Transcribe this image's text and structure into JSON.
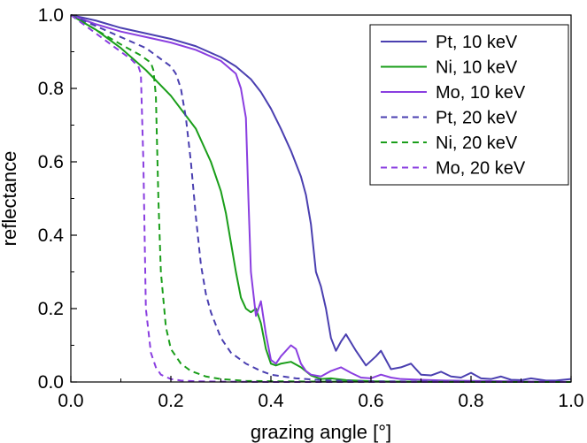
{
  "chart_data": {
    "type": "line",
    "xlabel": "grazing angle [°]",
    "ylabel": "reflectance",
    "xlim": [
      0.0,
      1.0
    ],
    "ylim": [
      0.0,
      1.0
    ],
    "xticks": [
      "0.0",
      "0.2",
      "0.4",
      "0.6",
      "0.8",
      "1.0"
    ],
    "yticks": [
      "0.0",
      "0.2",
      "0.4",
      "0.6",
      "0.8",
      "1.0"
    ],
    "grid": false,
    "legend_position": "top-right",
    "series": [
      {
        "name": "Pt, 10 keV",
        "color": "#4a3fb0",
        "dash": "solid",
        "x": [
          0.0,
          0.05,
          0.1,
          0.15,
          0.2,
          0.25,
          0.3,
          0.33,
          0.36,
          0.38,
          0.4,
          0.42,
          0.44,
          0.46,
          0.47,
          0.48,
          0.49,
          0.5,
          0.51,
          0.52,
          0.53,
          0.54,
          0.55,
          0.57,
          0.59,
          0.61,
          0.62,
          0.64,
          0.66,
          0.68,
          0.7,
          0.72,
          0.74,
          0.76,
          0.78,
          0.8,
          0.82,
          0.84,
          0.86,
          0.88,
          0.9,
          0.92,
          0.95,
          0.97,
          1.0
        ],
        "y": [
          1.0,
          0.985,
          0.965,
          0.95,
          0.935,
          0.915,
          0.885,
          0.86,
          0.825,
          0.79,
          0.745,
          0.69,
          0.63,
          0.56,
          0.51,
          0.43,
          0.3,
          0.26,
          0.2,
          0.12,
          0.085,
          0.11,
          0.13,
          0.085,
          0.045,
          0.07,
          0.085,
          0.035,
          0.04,
          0.05,
          0.02,
          0.018,
          0.028,
          0.015,
          0.012,
          0.025,
          0.01,
          0.008,
          0.015,
          0.006,
          0.005,
          0.01,
          0.004,
          0.004,
          0.008
        ]
      },
      {
        "name": "Ni, 10 keV",
        "color": "#1a9e1a",
        "dash": "solid",
        "x": [
          0.0,
          0.05,
          0.1,
          0.15,
          0.2,
          0.25,
          0.28,
          0.3,
          0.31,
          0.32,
          0.33,
          0.34,
          0.35,
          0.36,
          0.37,
          0.38,
          0.39,
          0.4,
          0.41,
          0.42,
          0.44,
          0.46,
          0.48,
          0.5,
          0.52,
          0.55,
          0.6,
          0.65,
          0.7,
          1.0
        ],
        "y": [
          1.0,
          0.96,
          0.91,
          0.85,
          0.78,
          0.69,
          0.6,
          0.52,
          0.46,
          0.38,
          0.3,
          0.23,
          0.2,
          0.19,
          0.2,
          0.16,
          0.09,
          0.05,
          0.045,
          0.05,
          0.055,
          0.04,
          0.018,
          0.008,
          0.01,
          0.005,
          0.002,
          0.001,
          0.0005,
          0.0
        ]
      },
      {
        "name": "Mo, 10 keV",
        "color": "#8a3ee0",
        "dash": "solid",
        "x": [
          0.0,
          0.05,
          0.1,
          0.15,
          0.2,
          0.25,
          0.3,
          0.33,
          0.34,
          0.35,
          0.355,
          0.36,
          0.37,
          0.38,
          0.39,
          0.4,
          0.41,
          0.42,
          0.44,
          0.45,
          0.46,
          0.47,
          0.48,
          0.5,
          0.52,
          0.54,
          0.56,
          0.58,
          0.6,
          0.62,
          0.64,
          0.66,
          0.7,
          0.75,
          0.8,
          1.0
        ],
        "y": [
          1.0,
          0.975,
          0.955,
          0.94,
          0.925,
          0.905,
          0.875,
          0.84,
          0.8,
          0.72,
          0.5,
          0.3,
          0.18,
          0.22,
          0.13,
          0.06,
          0.05,
          0.07,
          0.1,
          0.09,
          0.05,
          0.03,
          0.02,
          0.015,
          0.03,
          0.04,
          0.025,
          0.012,
          0.01,
          0.02,
          0.012,
          0.008,
          0.006,
          0.004,
          0.003,
          0.0
        ]
      },
      {
        "name": "Pt, 20 keV",
        "color": "#4a3fb0",
        "dash": "dashed",
        "x": [
          0.0,
          0.05,
          0.1,
          0.15,
          0.18,
          0.2,
          0.21,
          0.22,
          0.23,
          0.24,
          0.25,
          0.26,
          0.27,
          0.28,
          0.3,
          0.32,
          0.35,
          0.38,
          0.4,
          0.45,
          0.5,
          0.6,
          1.0
        ],
        "y": [
          1.0,
          0.97,
          0.94,
          0.91,
          0.88,
          0.86,
          0.84,
          0.8,
          0.72,
          0.6,
          0.45,
          0.32,
          0.24,
          0.19,
          0.12,
          0.08,
          0.05,
          0.03,
          0.02,
          0.01,
          0.005,
          0.002,
          0.0
        ]
      },
      {
        "name": "Ni, 20 keV",
        "color": "#1a9e1a",
        "dash": "dashed",
        "x": [
          0.0,
          0.05,
          0.1,
          0.14,
          0.16,
          0.165,
          0.17,
          0.175,
          0.18,
          0.19,
          0.2,
          0.22,
          0.24,
          0.27,
          0.3,
          0.35,
          0.4,
          0.5,
          1.0
        ],
        "y": [
          1.0,
          0.96,
          0.92,
          0.89,
          0.87,
          0.85,
          0.78,
          0.5,
          0.3,
          0.15,
          0.09,
          0.05,
          0.03,
          0.015,
          0.008,
          0.003,
          0.002,
          0.001,
          0.0
        ]
      },
      {
        "name": "Mo, 20 keV",
        "color": "#8a3ee0",
        "dash": "dashed",
        "x": [
          0.0,
          0.05,
          0.1,
          0.12,
          0.135,
          0.14,
          0.145,
          0.15,
          0.16,
          0.17,
          0.18,
          0.2,
          0.22,
          0.25,
          0.3,
          0.4,
          1.0
        ],
        "y": [
          1.0,
          0.95,
          0.9,
          0.88,
          0.86,
          0.84,
          0.6,
          0.2,
          0.08,
          0.04,
          0.02,
          0.008,
          0.004,
          0.002,
          0.001,
          0.0,
          0.0
        ]
      }
    ]
  }
}
